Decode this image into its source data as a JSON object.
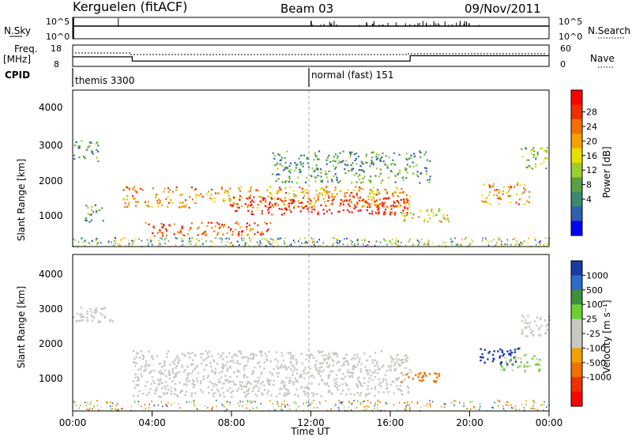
{
  "header": {
    "title": "Kerguelen (fitACF)",
    "beam": "Beam 03",
    "date": "09/Nov/2011"
  },
  "top_panels": {
    "nsky_label": "N.Sky",
    "nsky_ticks": [
      "10^5",
      "10^0"
    ],
    "nsearch_label": "N.Search",
    "nsearch_ticks": [
      "10^5",
      "10^0"
    ],
    "freq_label_1": "Freq.",
    "freq_label_2": "[MHz]",
    "freq_ticks": [
      "18",
      "8"
    ],
    "nave_label": "Nave",
    "nave_ticks": [
      "60",
      "0"
    ],
    "cpid_label": "CPID",
    "cpid_entries": [
      {
        "time_h": 0.0,
        "label": "themis 3300"
      },
      {
        "time_h": 12.0,
        "label": "normal (fast) 151"
      }
    ]
  },
  "x_axis": {
    "label": "Time UT",
    "ticks": [
      "00:00",
      "04:00",
      "08:00",
      "12:00",
      "16:00",
      "20:00",
      "00:00"
    ],
    "range_hours": [
      0,
      24
    ]
  },
  "power_panel": {
    "ylabel": "Slant Range [km]",
    "yticks": [
      "4000",
      "3000",
      "2000",
      "1000"
    ],
    "colorbar_label": "Power [dB]",
    "colorbar_ticks": [
      "28",
      "24",
      "20",
      "16",
      "12",
      "8",
      "4"
    ],
    "colors": [
      "#0000ff",
      "#2e5fb4",
      "#3a8a6e",
      "#5aa045",
      "#9bcf2e",
      "#e6e000",
      "#f5a000",
      "#f07000",
      "#f03000",
      "#ff0000"
    ]
  },
  "velocity_panel": {
    "ylabel": "Slant Range [km]",
    "yticks": [
      "4000",
      "3000",
      "2000",
      "1000"
    ],
    "colorbar_label": "Velocity [m s⁻¹]",
    "colorbar_ticks": [
      "1000",
      "500",
      "100",
      "25",
      "-25",
      "-100",
      "-500",
      "-1000"
    ],
    "colors": [
      "#1a3aa8",
      "#2e6bc6",
      "#3d8f3d",
      "#6ccf33",
      "#c8c8c0",
      "#c8c8c0",
      "#f0a000",
      "#f07000",
      "#f03000",
      "#ff0000"
    ],
    "ground_scatter_color": "#c8c8c0"
  },
  "chart_data": {
    "type": "heatmap",
    "title": "Kerguelen (fitACF)",
    "xlabel": "Time UT",
    "ylabel": "Slant Range [km]",
    "xlim_hours": [
      0,
      24
    ],
    "ylim_km": [
      180,
      4600
    ],
    "freq_mhz": [
      {
        "start_h": 0.0,
        "end_h": 3.0,
        "value": 12.5
      },
      {
        "start_h": 3.0,
        "end_h": 17.0,
        "value": 10.5
      },
      {
        "start_h": 17.0,
        "end_h": 24.0,
        "value": 13.0
      }
    ],
    "power_echo_regions_db": [
      {
        "t_start_h": 0.0,
        "t_end_h": 1.3,
        "r_min_km": 2600,
        "r_max_km": 3200,
        "level_db": 8
      },
      {
        "t_start_h": 0.5,
        "t_end_h": 1.5,
        "r_min_km": 900,
        "r_max_km": 1400,
        "level_db": 8
      },
      {
        "t_start_h": 2.5,
        "t_end_h": 17.0,
        "r_min_km": 1300,
        "r_max_km": 1900,
        "level_db": 20
      },
      {
        "t_start_h": 8.0,
        "t_end_h": 17.0,
        "r_min_km": 1100,
        "r_max_km": 1600,
        "level_db": 28
      },
      {
        "t_start_h": 3.5,
        "t_end_h": 10.0,
        "r_min_km": 500,
        "r_max_km": 900,
        "level_db": 24
      },
      {
        "t_start_h": 10.0,
        "t_end_h": 18.0,
        "r_min_km": 2000,
        "r_max_km": 2900,
        "level_db": 8
      },
      {
        "t_start_h": 16.5,
        "t_end_h": 19.0,
        "r_min_km": 900,
        "r_max_km": 1300,
        "level_db": 16
      },
      {
        "t_start_h": 20.5,
        "t_end_h": 23.0,
        "r_min_km": 1400,
        "r_max_km": 2000,
        "level_db": 20
      },
      {
        "t_start_h": 22.5,
        "t_end_h": 24.0,
        "r_min_km": 2400,
        "r_max_km": 3000,
        "level_db": 12
      }
    ],
    "velocity_echo_regions_ms": [
      {
        "t_start_h": 3.0,
        "t_end_h": 17.0,
        "r_min_km": 600,
        "r_max_km": 1900,
        "type": "ground scatter"
      },
      {
        "t_start_h": 0.0,
        "t_end_h": 2.0,
        "r_min_km": 2700,
        "r_max_km": 3200,
        "type": "ground scatter"
      },
      {
        "t_start_h": 16.5,
        "t_end_h": 18.5,
        "r_min_km": 1000,
        "r_max_km": 1300,
        "value_ms": -500
      },
      {
        "t_start_h": 20.5,
        "t_end_h": 22.5,
        "r_min_km": 1500,
        "r_max_km": 2000,
        "value_ms": 1000
      },
      {
        "t_start_h": 21.5,
        "t_end_h": 23.5,
        "r_min_km": 1300,
        "r_max_km": 1800,
        "value_ms": 100
      },
      {
        "t_start_h": 22.5,
        "t_end_h": 24.0,
        "r_min_km": 2300,
        "r_max_km": 2900,
        "type": "ground scatter"
      }
    ]
  }
}
